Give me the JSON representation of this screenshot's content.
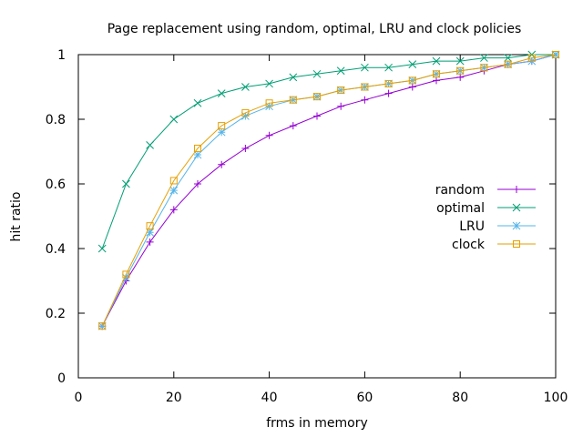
{
  "chart_data": {
    "type": "line",
    "title": "Page replacement using random, optimal, LRU and clock policies",
    "xlabel": "frms in memory",
    "ylabel": "hit ratio",
    "xlim": [
      0,
      100
    ],
    "ylim": [
      0,
      1
    ],
    "xticks": [
      0,
      20,
      40,
      60,
      80,
      100
    ],
    "yticks": [
      0,
      0.2,
      0.4,
      0.6,
      0.8,
      1
    ],
    "grid": false,
    "legend": "right",
    "x": [
      5,
      10,
      15,
      20,
      25,
      30,
      35,
      40,
      45,
      50,
      55,
      60,
      65,
      70,
      75,
      80,
      85,
      90,
      95,
      100
    ],
    "series": [
      {
        "name": "random",
        "color": "#9400d3",
        "marker": "plus",
        "values": [
          0.16,
          0.3,
          0.42,
          0.52,
          0.6,
          0.66,
          0.71,
          0.75,
          0.78,
          0.81,
          0.84,
          0.86,
          0.88,
          0.9,
          0.92,
          0.93,
          0.95,
          0.97,
          0.98,
          1.0
        ]
      },
      {
        "name": "optimal",
        "color": "#009e73",
        "marker": "cross",
        "values": [
          0.4,
          0.6,
          0.72,
          0.8,
          0.85,
          0.88,
          0.9,
          0.91,
          0.93,
          0.94,
          0.95,
          0.96,
          0.96,
          0.97,
          0.98,
          0.98,
          0.99,
          0.99,
          1.0,
          1.0
        ]
      },
      {
        "name": "LRU",
        "color": "#56b4e9",
        "marker": "star",
        "values": [
          0.16,
          0.31,
          0.45,
          0.58,
          0.69,
          0.76,
          0.81,
          0.84,
          0.86,
          0.87,
          0.89,
          0.9,
          0.91,
          0.92,
          0.94,
          0.95,
          0.96,
          0.97,
          0.98,
          1.0
        ]
      },
      {
        "name": "clock",
        "color": "#e69f00",
        "marker": "square",
        "values": [
          0.16,
          0.32,
          0.47,
          0.61,
          0.71,
          0.78,
          0.82,
          0.85,
          0.86,
          0.87,
          0.89,
          0.9,
          0.91,
          0.92,
          0.94,
          0.95,
          0.96,
          0.97,
          0.99,
          1.0
        ]
      }
    ]
  }
}
